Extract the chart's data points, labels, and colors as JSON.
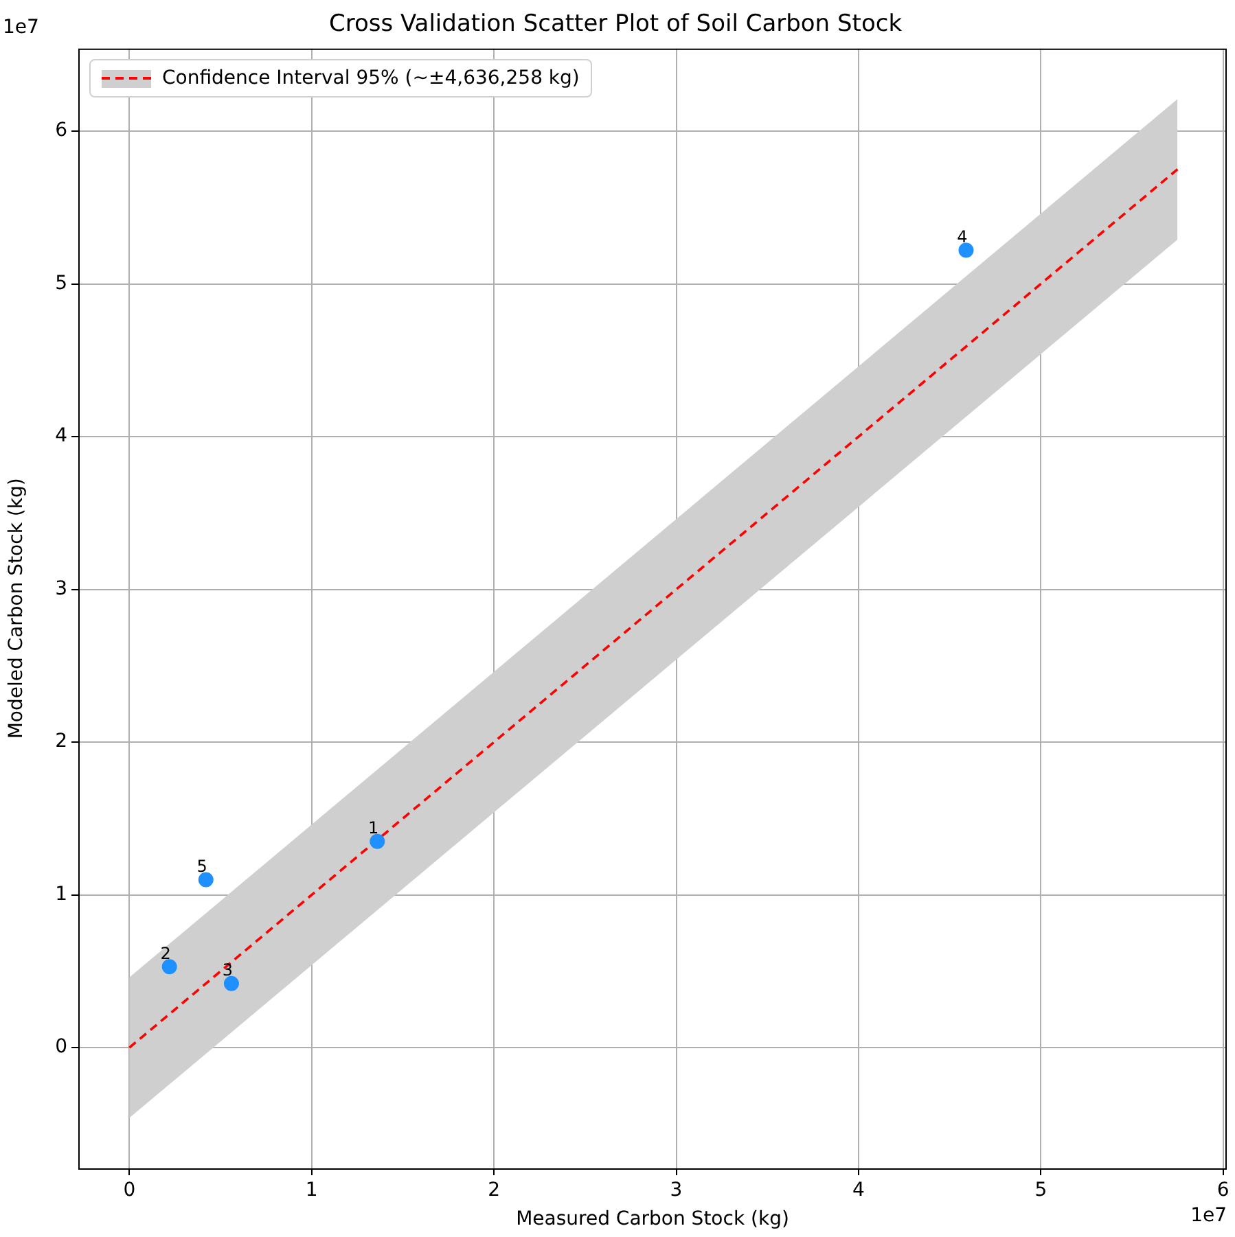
{
  "chart_data": {
    "type": "scatter",
    "title": "Cross Validation Scatter Plot of Soil Carbon Stock",
    "xlabel": "Measured Carbon Stock (kg)",
    "ylabel": "Modeled Carbon Stock (kg)",
    "annotations": [
      "1e7",
      "1e7",
      {
        "text": "1",
        "x": 1.36,
        "y": 1.35
      },
      {
        "text": "2",
        "x": 0.22,
        "y": 0.53
      },
      {
        "text": "3",
        "x": 0.56,
        "y": 0.42
      },
      {
        "text": "4",
        "x": 4.59,
        "y": 5.22
      },
      {
        "text": "5",
        "x": 0.42,
        "y": 1.1
      }
    ],
    "series": [
      {
        "type": "line",
        "name": "Confidence Interval 95% (~±4,636,258 kg)",
        "color": "#ff0000",
        "line_style": "dashed",
        "marker": "none",
        "x": [
          0,
          5.75
        ],
        "values": [
          0,
          5.75
        ],
        "lower": [
          -0.46,
          5.29
        ],
        "upper": [
          0.46,
          6.21
        ]
      },
      {
        "color": "#1e90ff",
        "marker": "circle",
        "x": [
          1.36,
          0.22,
          0.56,
          4.59,
          0.42
        ],
        "values": [
          1.35,
          0.53,
          0.42,
          5.22,
          1.1
        ]
      }
    ],
    "xlim": [
      -0.28,
      6.02
    ],
    "ylim": [
      -0.79,
      6.54
    ],
    "xticks": [
      0,
      1,
      2,
      3,
      4,
      5,
      6
    ],
    "yticks": [
      0,
      1,
      2,
      3,
      4,
      5,
      6
    ],
    "grid": true,
    "legend": "top left"
  }
}
